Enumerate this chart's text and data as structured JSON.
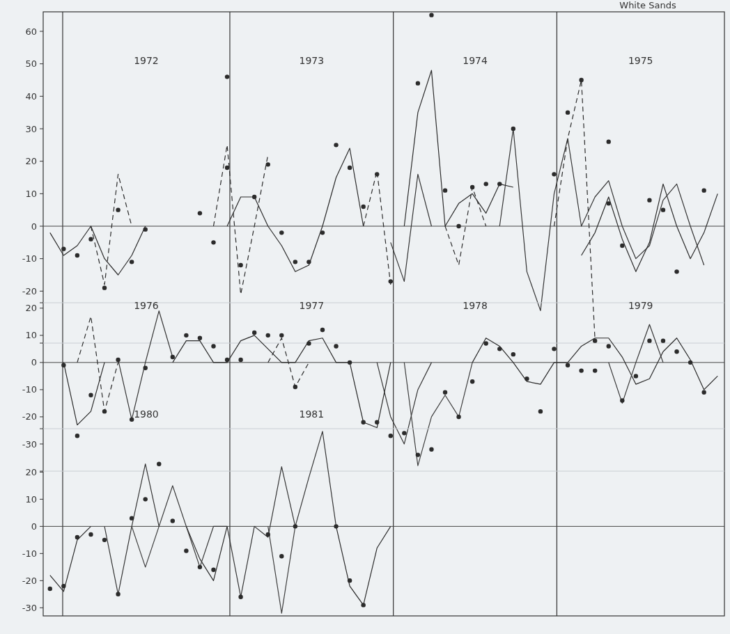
{
  "chart_data": [
    {
      "type": "line",
      "title": "White Sands",
      "tick_labels": "y",
      "grid": "x",
      "ylim": [
        -36,
        66
      ],
      "yticks": [
        60,
        50,
        40,
        30,
        20,
        10,
        0,
        -10,
        -20,
        {
          "value": -36,
          "label": null
        }
      ],
      "annotations": [
        "1972",
        "1973",
        "1974",
        "1975"
      ],
      "ref_lines": [
        {
          "axis": "y",
          "value": 0
        }
      ],
      "categories": [
        null,
        null,
        null,
        null,
        null,
        null,
        null,
        null,
        null,
        null,
        null,
        null,
        null,
        null,
        null,
        null,
        null,
        null,
        null,
        null,
        null,
        null,
        null,
        null,
        null,
        null,
        null,
        null,
        null,
        null,
        null,
        null,
        null,
        null,
        null,
        null,
        null,
        null,
        null,
        null,
        null,
        null,
        null,
        null,
        null,
        null,
        null,
        null,
        null,
        null
      ],
      "series": [
        {
          "color": "#2b2b2b",
          "line_style": "solid",
          "values": [
            -2,
            -9,
            -6,
            0,
            -10,
            -15,
            -9,
            0,
            null,
            null,
            null,
            null,
            null,
            0,
            9,
            9,
            0,
            -6,
            -14,
            -12,
            0,
            15,
            24,
            0,
            null,
            null,
            0,
            35,
            48,
            0,
            7,
            10,
            4,
            13,
            12,
            null,
            null,
            null,
            null,
            -9,
            -2,
            9,
            -4,
            -14,
            -5,
            13,
            0,
            -10,
            -2,
            10
          ]
        },
        {
          "color": "#353535",
          "line_style": "solid",
          "values": [
            null,
            null,
            null,
            null,
            null,
            null,
            null,
            null,
            null,
            null,
            null,
            null,
            null,
            null,
            null,
            null,
            null,
            null,
            null,
            null,
            null,
            null,
            null,
            null,
            null,
            -5,
            -17,
            16,
            0,
            null,
            null,
            null,
            null,
            0,
            30,
            -14,
            -26,
            10,
            27,
            0,
            9,
            14,
            0,
            -10,
            -6,
            8,
            13,
            0,
            -12,
            null
          ]
        },
        {
          "color": "#2b2b2b",
          "line_style": "dashed",
          "values": [
            null,
            null,
            null,
            0,
            -18,
            16,
            0,
            null,
            null,
            null,
            null,
            null,
            0,
            25,
            -21,
            0,
            22,
            null,
            null,
            null,
            null,
            null,
            null,
            0,
            17,
            -18,
            null,
            null,
            null,
            0,
            -12,
            12,
            0,
            null,
            null,
            null,
            null,
            0,
            27,
            45,
            -35,
            null,
            null,
            null,
            null,
            null,
            null,
            null,
            null,
            null
          ]
        },
        {
          "type": "scatter",
          "color": "#2b2b2b",
          "marker": "circle",
          "values": [
            null,
            -7,
            -9,
            -4,
            -19,
            5,
            -11,
            -1,
            null,
            null,
            null,
            4,
            -5,
            18,
            -12,
            9,
            19,
            -2,
            -11,
            -11,
            -2,
            25,
            18,
            6,
            16,
            -17,
            null,
            44,
            65,
            11,
            0,
            12,
            13,
            13,
            30,
            null,
            null,
            16,
            35,
            45,
            null,
            7,
            -6,
            null,
            8,
            5,
            -14,
            null,
            11,
            null
          ]
        },
        {
          "type": "scatter",
          "color": "#2b2b2b",
          "marker": "circle",
          "values": [
            null,
            null,
            null,
            null,
            null,
            null,
            null,
            null,
            null,
            null,
            null,
            null,
            null,
            46,
            null,
            null,
            null,
            null,
            null,
            null,
            null,
            null,
            null,
            null,
            null,
            null,
            null,
            null,
            null,
            null,
            null,
            null,
            null,
            null,
            null,
            null,
            null,
            null,
            null,
            null,
            null,
            26,
            null,
            null,
            null,
            null,
            null,
            null,
            null,
            null
          ]
        }
      ]
    },
    {
      "type": "line",
      "tick_labels": "y",
      "ylim": [
        -40,
        22
      ],
      "yticks": [
        {
          "value": 22,
          "label": null
        },
        20,
        10,
        0,
        -10,
        -20,
        -30,
        {
          "value": -40,
          "label": null
        }
      ],
      "annotations": [
        "1976",
        "1977",
        "1978",
        "1979"
      ],
      "ref_lines": [
        {
          "axis": "y",
          "value": 0
        }
      ],
      "categories": [
        null,
        null,
        null,
        null,
        null,
        null,
        null,
        null,
        null,
        null,
        null,
        null,
        null,
        null,
        null,
        null,
        null,
        null,
        null,
        null,
        null,
        null,
        null,
        null,
        null,
        null,
        null,
        null,
        null,
        null,
        null,
        null,
        null,
        null,
        null,
        null,
        null,
        null,
        null,
        null,
        null,
        null,
        null,
        null,
        null,
        null,
        null,
        null,
        null,
        null
      ],
      "series": [
        {
          "color": "#2b2b2b",
          "line_style": "solid",
          "values": [
            null,
            0,
            -23,
            -18,
            0,
            null,
            null,
            null,
            null,
            0,
            8,
            8,
            0,
            0,
            8,
            10,
            5,
            0,
            0,
            8,
            9,
            0,
            0,
            -22,
            -24,
            0,
            null,
            null,
            null,
            null,
            null,
            0,
            9,
            6,
            0,
            -7,
            -8,
            0,
            0,
            6,
            9,
            9,
            2,
            -8,
            -6,
            4,
            9,
            1,
            -10,
            -5
          ]
        },
        {
          "color": "#353535",
          "line_style": "solid",
          "values": [
            null,
            null,
            null,
            null,
            null,
            1,
            -21,
            0,
            19,
            2,
            null,
            null,
            null,
            null,
            null,
            null,
            null,
            null,
            null,
            null,
            null,
            null,
            null,
            null,
            0,
            -20,
            -30,
            -10,
            0,
            null,
            null,
            null,
            null,
            null,
            null,
            null,
            null,
            null,
            null,
            null,
            null,
            0,
            -15,
            0,
            14,
            0,
            null,
            null,
            null,
            null
          ]
        },
        {
          "color": "#3f3f3f",
          "line_style": "solid",
          "values": [
            null,
            null,
            null,
            null,
            null,
            null,
            null,
            null,
            null,
            null,
            null,
            null,
            null,
            null,
            null,
            null,
            null,
            null,
            null,
            null,
            null,
            null,
            null,
            null,
            null,
            null,
            0,
            -38,
            -20,
            -12,
            -20,
            0,
            null,
            null,
            null,
            null,
            null,
            null,
            null,
            null,
            null,
            null,
            null,
            null,
            null,
            null,
            null,
            null,
            null,
            null
          ]
        },
        {
          "color": "#2b2b2b",
          "line_style": "dashed",
          "values": [
            null,
            null,
            0,
            17,
            -18,
            0,
            null,
            null,
            null,
            null,
            null,
            null,
            null,
            null,
            null,
            null,
            0,
            9,
            -9,
            0,
            null,
            null,
            null,
            null,
            null,
            null,
            null,
            null,
            null,
            null,
            null,
            null,
            null,
            null,
            null,
            null,
            null,
            null,
            null,
            null,
            null,
            null,
            null,
            null,
            null,
            null,
            null,
            null,
            null,
            null
          ]
        },
        {
          "type": "scatter",
          "color": "#2b2b2b",
          "marker": "circle",
          "values": [
            null,
            -1,
            -27,
            -12,
            -18,
            1,
            -21,
            -2,
            null,
            2,
            10,
            9,
            6,
            1,
            1,
            11,
            10,
            10,
            -9,
            7,
            12,
            6,
            0,
            -22,
            -22,
            -27,
            -26,
            -34,
            -32,
            -11,
            -20,
            -7,
            7,
            5,
            3,
            -6,
            -18,
            5,
            -1,
            -3,
            -3,
            6,
            -14,
            -5,
            8,
            8,
            4,
            0,
            -11,
            null
          ]
        },
        {
          "type": "scatter",
          "color": "#2b2b2b",
          "marker": "circle",
          "values": [
            null,
            null,
            null,
            null,
            null,
            null,
            null,
            null,
            null,
            null,
            null,
            null,
            null,
            null,
            null,
            null,
            null,
            null,
            null,
            null,
            null,
            null,
            null,
            null,
            null,
            null,
            null,
            null,
            null,
            null,
            null,
            null,
            null,
            null,
            null,
            null,
            null,
            null,
            null,
            null,
            8,
            null,
            null,
            null,
            null,
            null,
            null,
            null,
            null,
            null
          ]
        }
      ]
    },
    {
      "type": "line",
      "tick_labels": "y",
      "ylim": [
        -33,
        36
      ],
      "yticks": [
        {
          "value": 36,
          "label": null
        },
        20,
        10,
        0,
        -10,
        -20,
        -30
      ],
      "annotations": [
        "1980",
        "1981"
      ],
      "ref_lines": [
        {
          "axis": "y",
          "value": 0
        }
      ],
      "categories": [
        null,
        null,
        null,
        null,
        null,
        null,
        null,
        null,
        null,
        null,
        null,
        null,
        null,
        null,
        null,
        null,
        null,
        null,
        null,
        null,
        null,
        null,
        null,
        null,
        null,
        null,
        null,
        null,
        null,
        null,
        null,
        null,
        null,
        null,
        null,
        null,
        null,
        null,
        null,
        null,
        null,
        null,
        null,
        null,
        null,
        null,
        null,
        null,
        null,
        null
      ],
      "series": [
        {
          "color": "#2b2b2b",
          "line_style": "solid",
          "values": [
            -18,
            -24,
            -5,
            0,
            null,
            null,
            null,
            null,
            null,
            null,
            0,
            -12,
            -20,
            0,
            null,
            null,
            null,
            null,
            null,
            null,
            null,
            0,
            -22,
            -29,
            -8,
            0,
            null,
            null,
            null,
            null,
            null,
            null,
            null,
            null,
            null,
            null,
            null,
            null,
            null,
            null,
            null,
            null,
            null,
            null,
            null,
            null,
            null,
            null,
            null,
            null
          ]
        },
        {
          "color": "#353535",
          "line_style": "solid",
          "values": [
            null,
            null,
            null,
            null,
            0,
            -25,
            0,
            23,
            0,
            15,
            0,
            -15,
            0,
            0,
            -26,
            0,
            -4,
            22,
            0,
            18,
            35,
            0,
            null,
            null,
            null,
            null,
            null,
            null,
            null,
            null,
            null,
            null,
            null,
            null,
            null,
            null,
            null,
            null,
            null,
            null,
            null,
            null,
            null,
            null,
            null,
            null,
            null,
            null,
            null,
            null
          ]
        },
        {
          "color": "#3f3f3f",
          "line_style": "solid",
          "values": [
            null,
            null,
            null,
            null,
            null,
            null,
            0,
            -15,
            0,
            null,
            null,
            null,
            null,
            null,
            null,
            null,
            0,
            -32,
            0,
            null,
            null,
            null,
            null,
            null,
            null,
            null,
            null,
            null,
            null,
            null,
            null,
            null,
            null,
            null,
            null,
            null,
            null,
            null,
            null,
            null,
            null,
            null,
            null,
            null,
            null,
            null,
            null,
            null,
            null,
            null
          ]
        },
        {
          "type": "scatter",
          "color": "#2b2b2b",
          "marker": "circle",
          "values": [
            -23,
            -22,
            -4,
            -3,
            -5,
            -25,
            3,
            10,
            23,
            2,
            -9,
            -15,
            -16,
            null,
            -26,
            null,
            -3,
            -11,
            0,
            null,
            null,
            0,
            -20,
            -29,
            null,
            null,
            null,
            null,
            null,
            null,
            null,
            null,
            null,
            null,
            null,
            null,
            null,
            null,
            null,
            null,
            null,
            null,
            null,
            null,
            null,
            null,
            null,
            null,
            null,
            null
          ]
        }
      ]
    }
  ]
}
